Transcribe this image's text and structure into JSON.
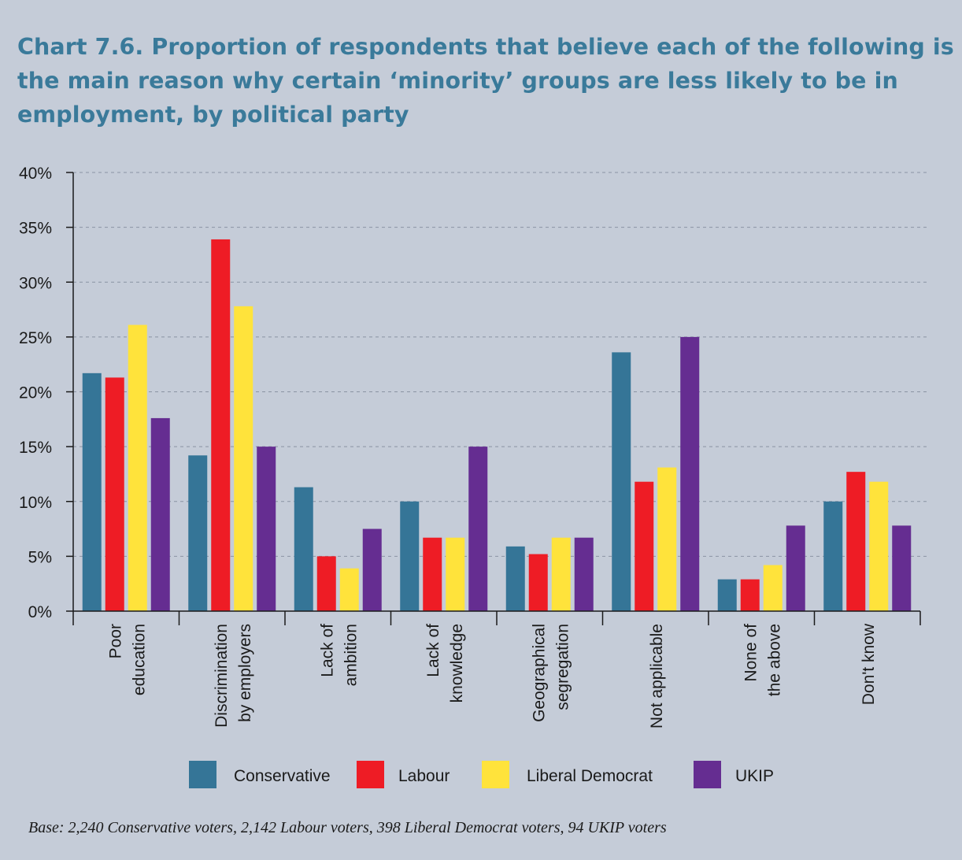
{
  "chart_data": {
    "type": "bar",
    "title": "Chart 7.6. Proportion of respondents that believe each of the following is the main reason why certain ‘minority’ groups are less likely to be in employment, by political party",
    "categories": [
      [
        "Poor",
        "education"
      ],
      [
        "Discrimination",
        "by employers"
      ],
      [
        "Lack of",
        "ambition"
      ],
      [
        "Lack of",
        "knowledge"
      ],
      [
        "Geographical",
        "segregation"
      ],
      [
        "Not applicable"
      ],
      [
        "None of",
        "the above"
      ],
      [
        "Don't know"
      ]
    ],
    "series": [
      {
        "name": "Conservative",
        "color": "#357597",
        "values": [
          21.7,
          14.2,
          11.3,
          10.0,
          5.9,
          23.6,
          2.9,
          10.0
        ]
      },
      {
        "name": "Labour",
        "color": "#ee1c25",
        "values": [
          21.3,
          33.9,
          5.0,
          6.7,
          5.2,
          11.8,
          2.9,
          12.7
        ]
      },
      {
        "name": "Liberal Democrat",
        "color": "#ffe33b",
        "values": [
          26.1,
          27.8,
          3.9,
          6.7,
          6.7,
          13.1,
          4.2,
          11.8
        ]
      },
      {
        "name": "UKIP",
        "color": "#652d91",
        "values": [
          17.6,
          15.0,
          7.5,
          15.0,
          6.7,
          25.0,
          7.8,
          7.8
        ]
      }
    ],
    "ylim": [
      0,
      40
    ],
    "yticks": [
      "0%",
      "5%",
      "10%",
      "15%",
      "20%",
      "25%",
      "30%",
      "35%",
      "40%"
    ],
    "grid": true,
    "legend_position": "bottom"
  },
  "footnote": "Base: 2,240 Conservative voters, 2,142 Labour voters, 398 Liberal Democrat voters, 94 UKIP voters"
}
